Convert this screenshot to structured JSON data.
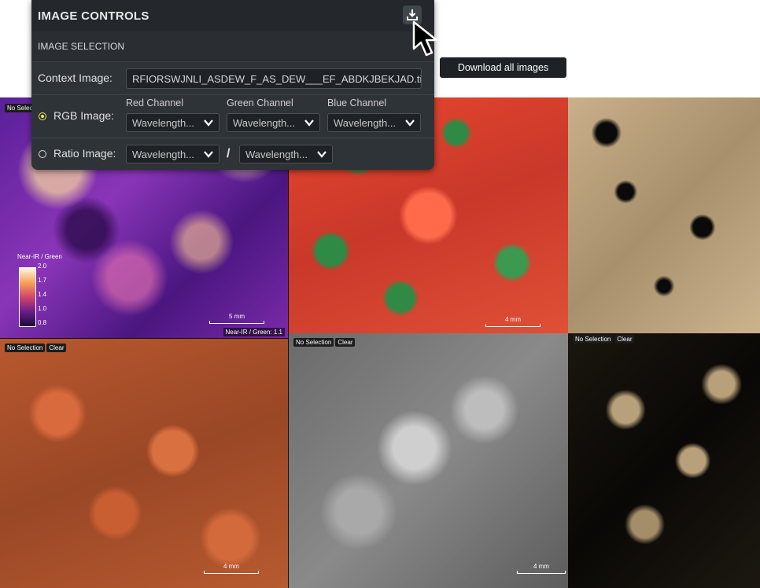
{
  "panel": {
    "title": "IMAGE CONTROLS",
    "section": "IMAGE SELECTION",
    "context": {
      "label": "Context Image:",
      "value": "RFIORSWJNLI_ASDEW_F_AS_DEW___EF_ABDKJBEKJAD.tif"
    },
    "rgb": {
      "label": "RGB Image:",
      "selected": true,
      "red_label": "Red Channel",
      "green_label": "Green Channel",
      "blue_label": "Blue Channel",
      "red_value": "Wavelength...",
      "green_value": "Wavelength...",
      "blue_value": "Wavelength..."
    },
    "ratio": {
      "label": "Ratio Image:",
      "selected": false,
      "numerator": "Wavelength...",
      "divider": "/",
      "denominator": "Wavelength..."
    }
  },
  "tooltip": "Download all images",
  "tiles": {
    "t1": {
      "sel": "No Selection",
      "scale": "5 mm",
      "corner": "Near-IR / Green: 1.1",
      "legend": {
        "title": "Near-IR / Green",
        "ticks": [
          "2.0",
          "1.7",
          "1.4",
          "1.0",
          "0.8"
        ]
      }
    },
    "t2": {
      "scale": "4 mm"
    },
    "t4": {
      "sel": "No Selection",
      "clear": "Clear",
      "scale": "4 mm"
    },
    "t5": {
      "sel": "No Selection",
      "clear": "Clear",
      "scale": "4 mm"
    },
    "t6": {
      "sel": "No Selection",
      "clear": "Clear"
    }
  },
  "icons": {
    "download": "download-icon",
    "cursor": "mouse-pointer-icon",
    "chevron": "chevron-down-icon"
  },
  "colors": {
    "panel_bg": "#2e3338",
    "header_bg": "#24282c",
    "accent": "#f2e45a"
  }
}
